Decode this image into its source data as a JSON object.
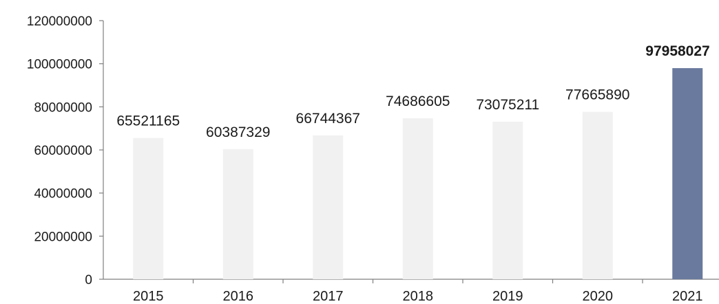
{
  "chart_data": {
    "type": "bar",
    "categories": [
      "2015",
      "2016",
      "2017",
      "2018",
      "2019",
      "2020",
      "2021"
    ],
    "values": [
      65521165,
      60387329,
      66744367,
      74686605,
      73075211,
      77665890,
      97958027
    ],
    "data_labels": [
      "65521165",
      "60387329",
      "66744367",
      "74686605",
      "73075211",
      "77665890",
      "97958027"
    ],
    "highlight_index": 6,
    "ylim": [
      0,
      120000000
    ],
    "yticks": [
      0,
      20000000,
      40000000,
      60000000,
      80000000,
      100000000,
      120000000
    ],
    "ytick_labels": [
      "0",
      "20000000",
      "40000000",
      "60000000",
      "80000000",
      "100000000",
      "120000000"
    ],
    "grid": false,
    "colors": {
      "bar": "#f1f1f1",
      "highlight": "#6a7a9e",
      "axis": "#7f7f7f",
      "text": "#1a1a1a"
    }
  }
}
